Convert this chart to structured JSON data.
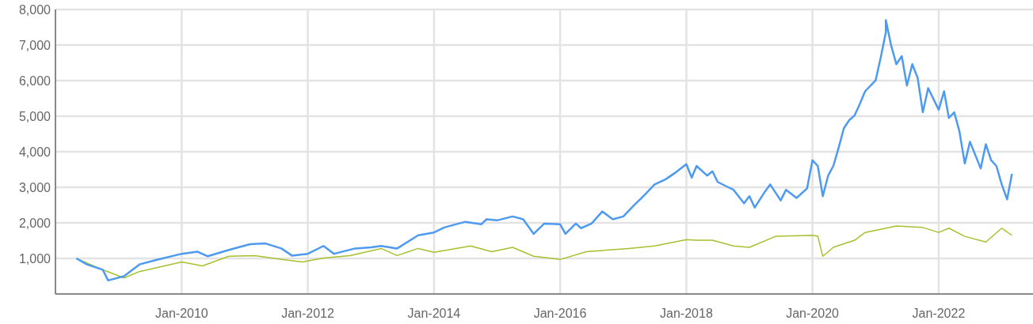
{
  "chart_data": {
    "type": "line",
    "xlim": [
      "2008-01",
      "2023-07"
    ],
    "ylim": [
      0,
      8000
    ],
    "xticks": [
      {
        "value": "2010-01",
        "label": "Jan-2010"
      },
      {
        "value": "2012-01",
        "label": "Jan-2012"
      },
      {
        "value": "2014-01",
        "label": "Jan-2014"
      },
      {
        "value": "2016-01",
        "label": "Jan-2016"
      },
      {
        "value": "2018-01",
        "label": "Jan-2018"
      },
      {
        "value": "2020-01",
        "label": "Jan-2020"
      },
      {
        "value": "2022-01",
        "label": "Jan-2022"
      }
    ],
    "yticks": [
      {
        "value": 1000,
        "label": "1,000"
      },
      {
        "value": 2000,
        "label": "2,000"
      },
      {
        "value": 3000,
        "label": "3,000"
      },
      {
        "value": 4000,
        "label": "4,000"
      },
      {
        "value": 5000,
        "label": "5,000"
      },
      {
        "value": 6000,
        "label": "6,000"
      },
      {
        "value": 7000,
        "label": "7,000"
      },
      {
        "value": 8000,
        "label": "8,000"
      }
    ],
    "grid": true,
    "marker": "none",
    "line_style": "solid",
    "series": [
      {
        "color": "#4e9af1",
        "x": [
          "2008-05",
          "2008-07",
          "2008-10",
          "2008-11",
          "2009-02",
          "2009-05",
          "2009-08",
          "2010-01",
          "2010-04",
          "2010-06",
          "2010-10",
          "2011-02",
          "2011-05",
          "2011-08",
          "2011-10",
          "2012-01",
          "2012-04",
          "2012-06",
          "2012-10",
          "2013-01",
          "2013-03",
          "2013-06",
          "2013-10",
          "2014-01",
          "2014-03",
          "2014-07",
          "2014-10",
          "2014-11",
          "2015-01",
          "2015-04",
          "2015-06",
          "2015-08",
          "2015-10",
          "2016-01",
          "2016-02",
          "2016-04",
          "2016-05",
          "2016-07",
          "2016-09",
          "2016-11",
          "2017-01",
          "2017-03",
          "2017-05",
          "2017-07",
          "2017-09",
          "2017-11",
          "2018-01",
          "2018-02",
          "2018-03",
          "2018-05",
          "2018-06",
          "2018-07",
          "2018-09",
          "2018-10",
          "2018-12",
          "2019-01",
          "2019-02",
          "2019-04",
          "2019-05",
          "2019-07",
          "2019-08",
          "2019-10",
          "2019-12",
          "2020-01",
          "2020-02",
          "2020-03",
          "2020-04",
          "2020-05",
          "2020-06",
          "2020-07",
          "2020-08",
          "2020-09",
          "2020-10",
          "2020-11",
          "2021-01",
          "2021-02",
          "2021-03",
          "2021-03",
          "2021-04",
          "2021-05",
          "2021-06",
          "2021-07",
          "2021-08",
          "2021-09",
          "2021-10",
          "2021-11",
          "2022-01",
          "2022-02",
          "2022-03",
          "2022-04",
          "2022-05",
          "2022-06",
          "2022-07",
          "2022-09",
          "2022-10",
          "2022-11",
          "2022-12",
          "2023-01",
          "2023-02",
          "2023-03"
        ],
        "values": [
          1000,
          830,
          680,
          380,
          500,
          830,
          950,
          1130,
          1190,
          1060,
          1240,
          1400,
          1420,
          1280,
          1080,
          1130,
          1350,
          1130,
          1280,
          1310,
          1350,
          1280,
          1650,
          1730,
          1870,
          2030,
          1960,
          2100,
          2070,
          2180,
          2100,
          1690,
          1980,
          1960,
          1690,
          1980,
          1850,
          1980,
          2320,
          2100,
          2180,
          2480,
          2770,
          3080,
          3220,
          3420,
          3650,
          3270,
          3600,
          3330,
          3450,
          3150,
          3000,
          2930,
          2550,
          2750,
          2430,
          2880,
          3080,
          2630,
          2930,
          2700,
          2970,
          3760,
          3600,
          2750,
          3330,
          3600,
          4120,
          4660,
          4890,
          5020,
          5340,
          5700,
          6010,
          6690,
          7360,
          7700,
          6980,
          6460,
          6690,
          5860,
          6460,
          6080,
          5110,
          5790,
          5180,
          5700,
          4950,
          5110,
          4570,
          3670,
          4280,
          3530,
          4210,
          3760,
          3600,
          3080,
          2660,
          3380
        ]
      },
      {
        "color": "#a5c12f",
        "x": [
          "2008-05",
          "2008-09",
          "2009-02",
          "2009-05",
          "2010-01",
          "2010-05",
          "2010-10",
          "2011-03",
          "2011-08",
          "2011-12",
          "2012-04",
          "2012-09",
          "2013-03",
          "2013-06",
          "2013-10",
          "2014-01",
          "2014-08",
          "2014-12",
          "2015-04",
          "2015-08",
          "2016-01",
          "2016-06",
          "2017-02",
          "2017-07",
          "2018-01",
          "2018-03",
          "2018-06",
          "2018-10",
          "2019-01",
          "2019-06",
          "2020-01",
          "2020-02",
          "2020-03",
          "2020-05",
          "2020-09",
          "2020-11",
          "2021-05",
          "2021-10",
          "2022-01",
          "2022-03",
          "2022-06",
          "2022-10",
          "2023-01",
          "2023-03"
        ],
        "values": [
          1000,
          740,
          450,
          630,
          900,
          790,
          1060,
          1080,
          970,
          900,
          1010,
          1080,
          1280,
          1080,
          1280,
          1170,
          1350,
          1190,
          1310,
          1060,
          970,
          1190,
          1280,
          1350,
          1530,
          1510,
          1510,
          1350,
          1310,
          1620,
          1650,
          1620,
          1060,
          1310,
          1510,
          1730,
          1910,
          1870,
          1730,
          1850,
          1620,
          1460,
          1850,
          1650
        ]
      }
    ]
  }
}
